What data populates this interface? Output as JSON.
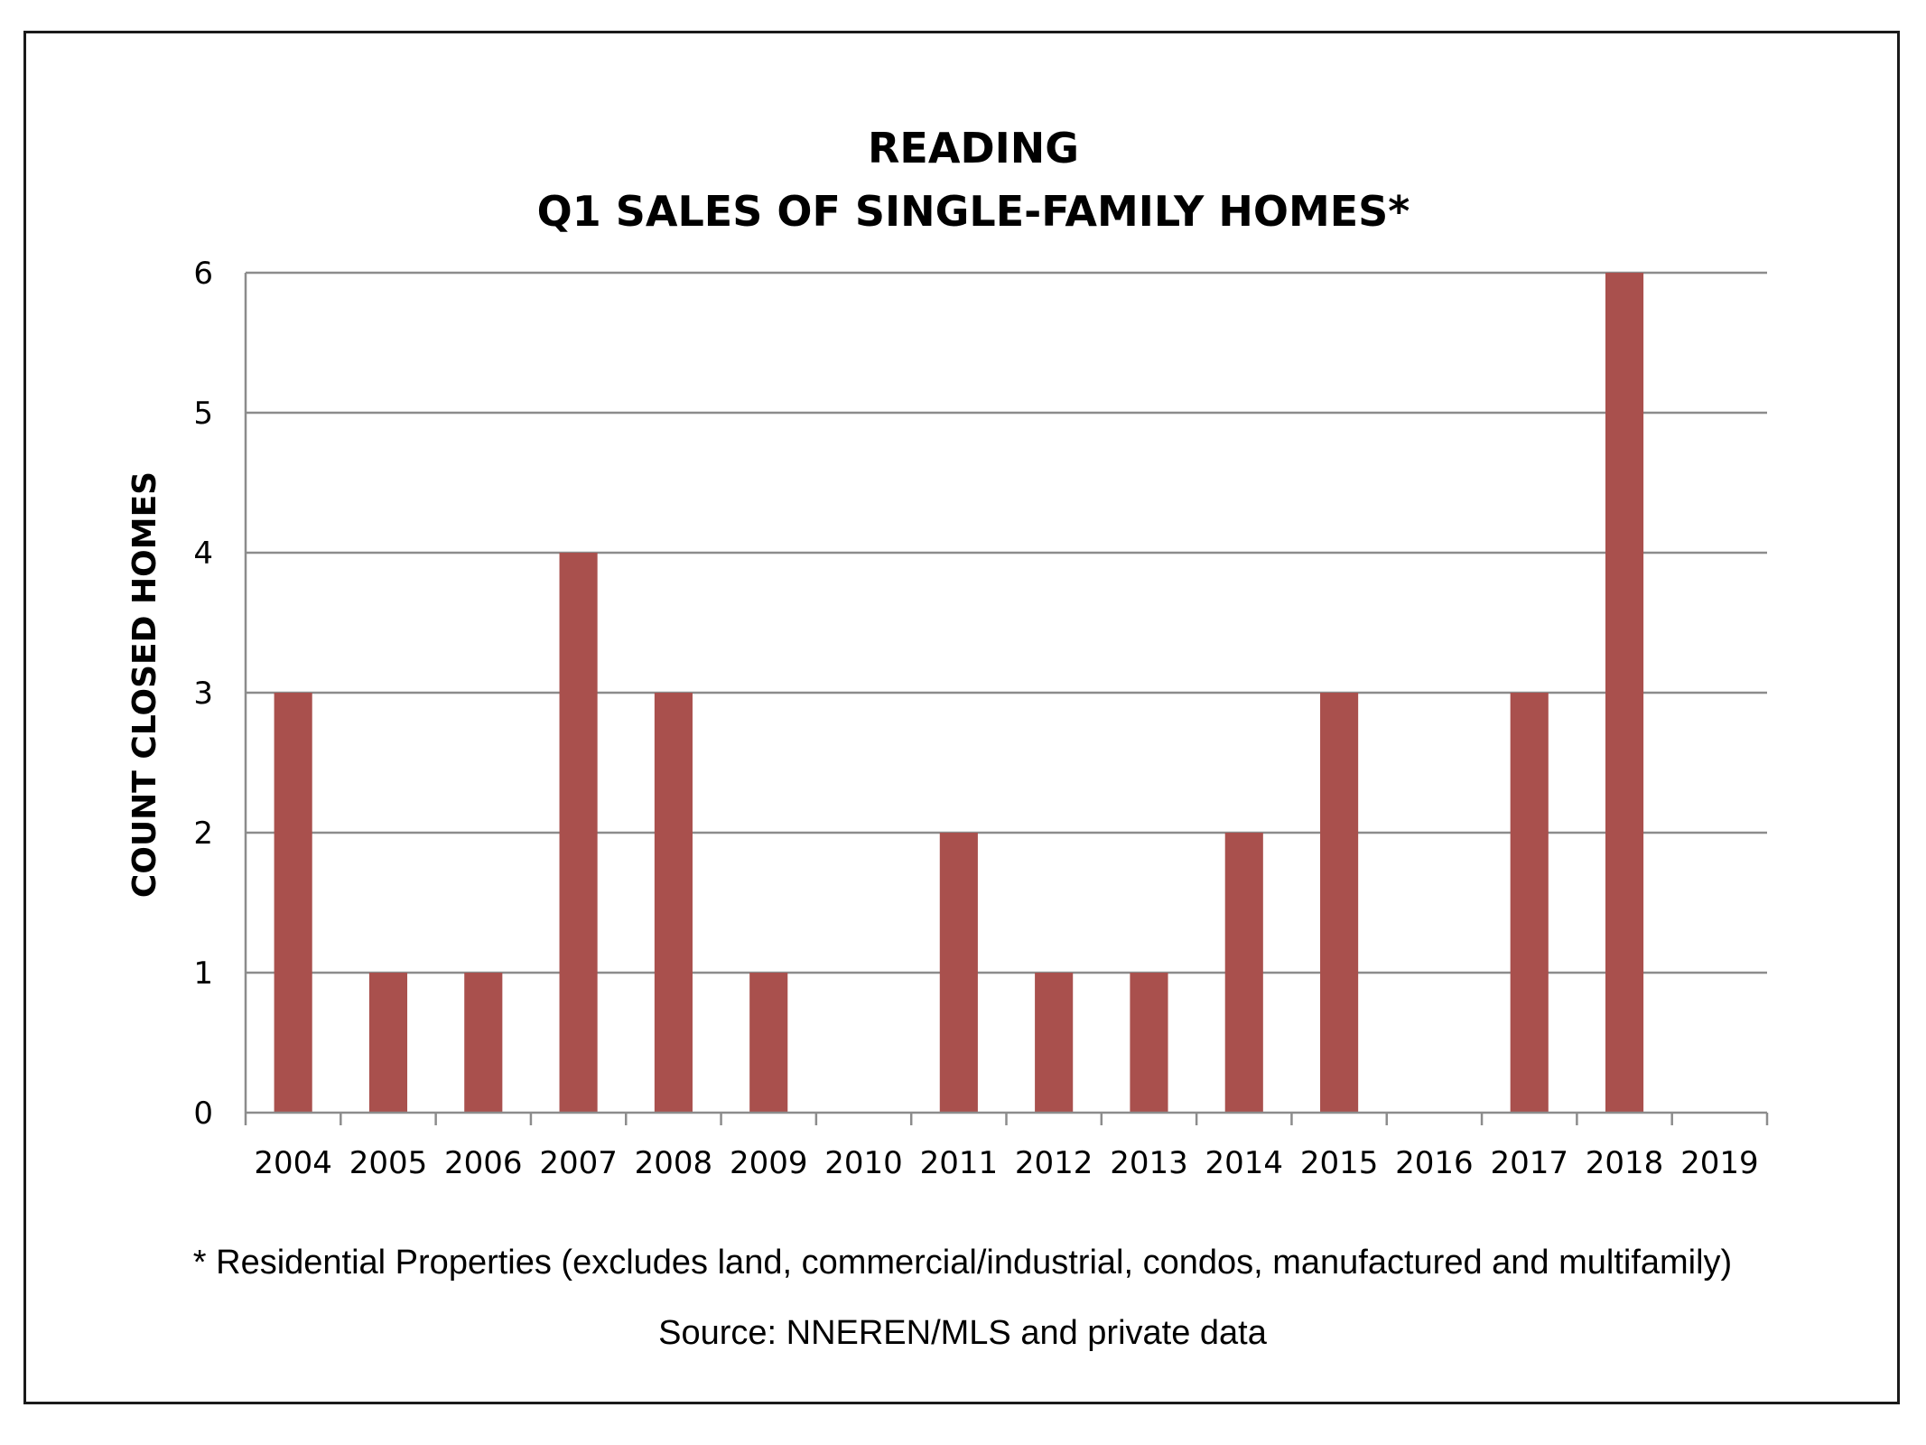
{
  "chart_data": {
    "type": "bar",
    "title": [
      "READING",
      "Q1 SALES OF SINGLE-FAMILY HOMES*"
    ],
    "xlabel": "",
    "ylabel": "COUNT CLOSED HOMES",
    "categories": [
      "2004",
      "2005",
      "2006",
      "2007",
      "2008",
      "2009",
      "2010",
      "2011",
      "2012",
      "2013",
      "2014",
      "2015",
      "2016",
      "2017",
      "2018",
      "2019"
    ],
    "series": [
      {
        "values": [
          3,
          1,
          1,
          4,
          3,
          1,
          0,
          2,
          1,
          1,
          2,
          3,
          0,
          3,
          6,
          0
        ]
      }
    ],
    "ylim": [
      0,
      6
    ],
    "yticks": [
      "0",
      "1",
      "2",
      "3",
      "4",
      "5",
      "6"
    ],
    "grid": true,
    "legend": "none",
    "colors": {
      "bar": "#a9504d",
      "grid": "#8c8c8c",
      "axis": "#8c8c8c"
    },
    "footnote": "* Residential Properties (excludes land, commercial/industrial, condos, manufactured and multifamily)",
    "source": "Source: NNEREN/MLS and private data"
  }
}
